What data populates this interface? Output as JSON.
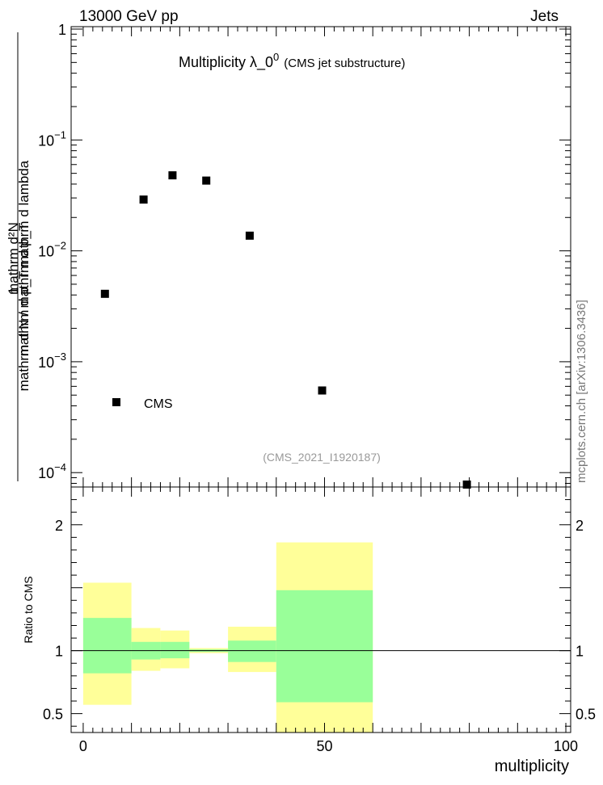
{
  "header": {
    "left": "13000 GeV pp",
    "right": "Jets"
  },
  "title": {
    "main": "Multiplicity  λ_0",
    "superscript": "0",
    "sub": "(CMS jet substructure)"
  },
  "watermark": "mcplots.cern.ch [arXiv:1306.3436]",
  "analysis_id": "(CMS_2021_I1920187)",
  "y_label": {
    "numerator": "mathrm d²N",
    "denominator_top": "mathrm d p_T mathrm d lambda",
    "prefix": "1",
    "denominator_bottom": "mathrm d N / mathrm d p_T"
  },
  "chart_data": [
    {
      "type": "scatter",
      "panel": "main",
      "x": [
        4.5,
        12.5,
        18.5,
        25.5,
        34.5,
        49.5,
        79.5
      ],
      "y": [
        0.0041,
        0.029,
        0.048,
        0.043,
        0.0137,
        0.00055,
        7.8e-05
      ],
      "series": [
        {
          "name": "CMS",
          "color": "#000000",
          "marker": "square"
        }
      ],
      "xlim": [
        -2.5,
        101
      ],
      "ylim": [
        8e-05,
        1
      ],
      "y_scale": "log",
      "y_ticks": [
        "1",
        "10^-1",
        "10^-2",
        "10^-3",
        "10^-4"
      ],
      "legend": {
        "label": "CMS",
        "placement": "bottom-left"
      }
    },
    {
      "type": "area",
      "panel": "ratio",
      "ylabel": "Ratio to CMS",
      "xlabel": "multiplicity",
      "xlim": [
        -2.5,
        101
      ],
      "ylim": [
        0.35,
        2.3
      ],
      "x_ticks": [
        "0",
        "50",
        "100"
      ],
      "y_ticks": [
        "0.5",
        "1",
        "2"
      ],
      "bins": [
        {
          "x0": 0,
          "x1": 10,
          "green": [
            0.82,
            1.26
          ],
          "yellow": [
            0.57,
            1.54
          ]
        },
        {
          "x0": 10,
          "x1": 16,
          "green": [
            0.93,
            1.07
          ],
          "yellow": [
            0.84,
            1.18
          ]
        },
        {
          "x0": 16,
          "x1": 22,
          "green": [
            0.94,
            1.07
          ],
          "yellow": [
            0.86,
            1.16
          ]
        },
        {
          "x0": 22,
          "x1": 30,
          "green": [
            0.99,
            1.01
          ],
          "yellow": [
            0.98,
            1.02
          ]
        },
        {
          "x0": 30,
          "x1": 40,
          "green": [
            0.91,
            1.08
          ],
          "yellow": [
            0.83,
            1.19
          ]
        },
        {
          "x0": 40,
          "x1": 60,
          "green": [
            0.59,
            1.48
          ],
          "yellow": [
            0.35,
            1.86
          ]
        }
      ],
      "band_colors": {
        "green": "#99ff99",
        "yellow": "#ffff99"
      },
      "reference_line": 1
    }
  ]
}
